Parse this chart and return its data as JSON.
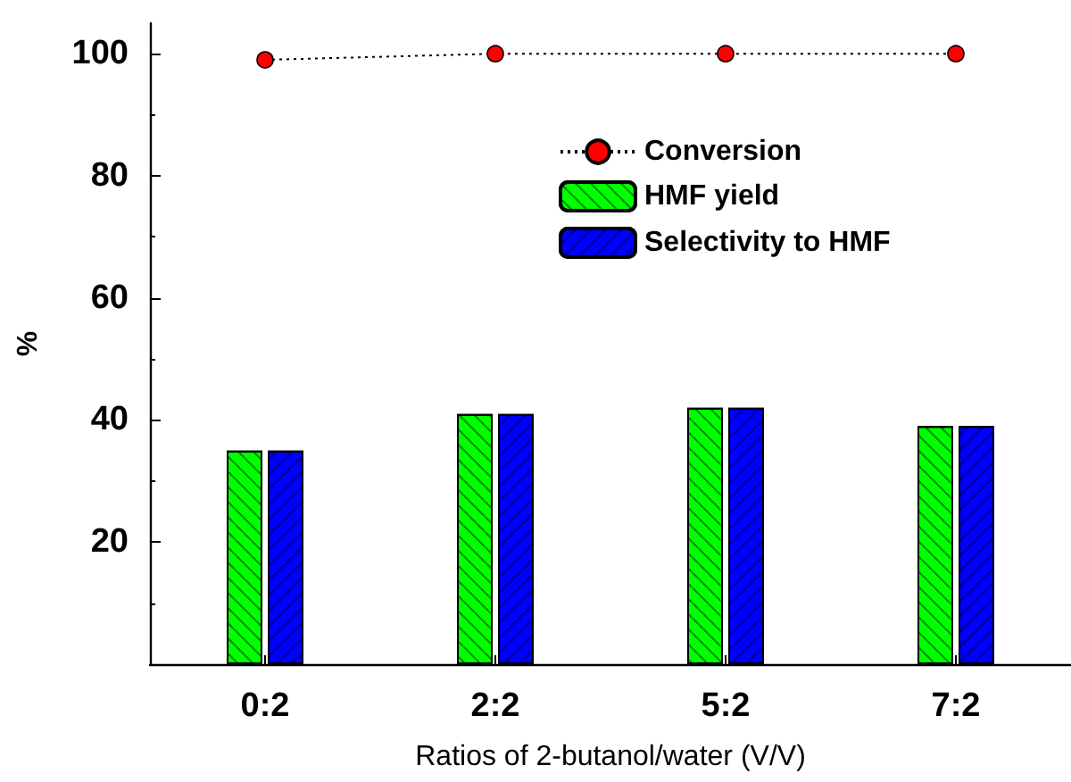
{
  "chart_data": {
    "type": "bar",
    "xlabel": "Ratios of 2-butanol/water (V/V)",
    "ylabel": "%",
    "categories": [
      "0:2",
      "2:2",
      "5:2",
      "7:2"
    ],
    "series": [
      {
        "name": "Conversion",
        "type": "line",
        "color": "#ff0000",
        "values": [
          99,
          100,
          100,
          100
        ],
        "marker": "circle",
        "line_style": "dotted"
      },
      {
        "name": "HMF yield",
        "color": "#00ff00",
        "values": [
          35,
          41,
          42,
          39
        ]
      },
      {
        "name": "Selectivity to HMF",
        "color": "#0000ff",
        "values": [
          35,
          41,
          42,
          39
        ]
      }
    ],
    "ylim": [
      0,
      105
    ],
    "yticks": [
      20,
      40,
      60,
      80,
      100
    ],
    "grid": false,
    "legend": "top right"
  }
}
